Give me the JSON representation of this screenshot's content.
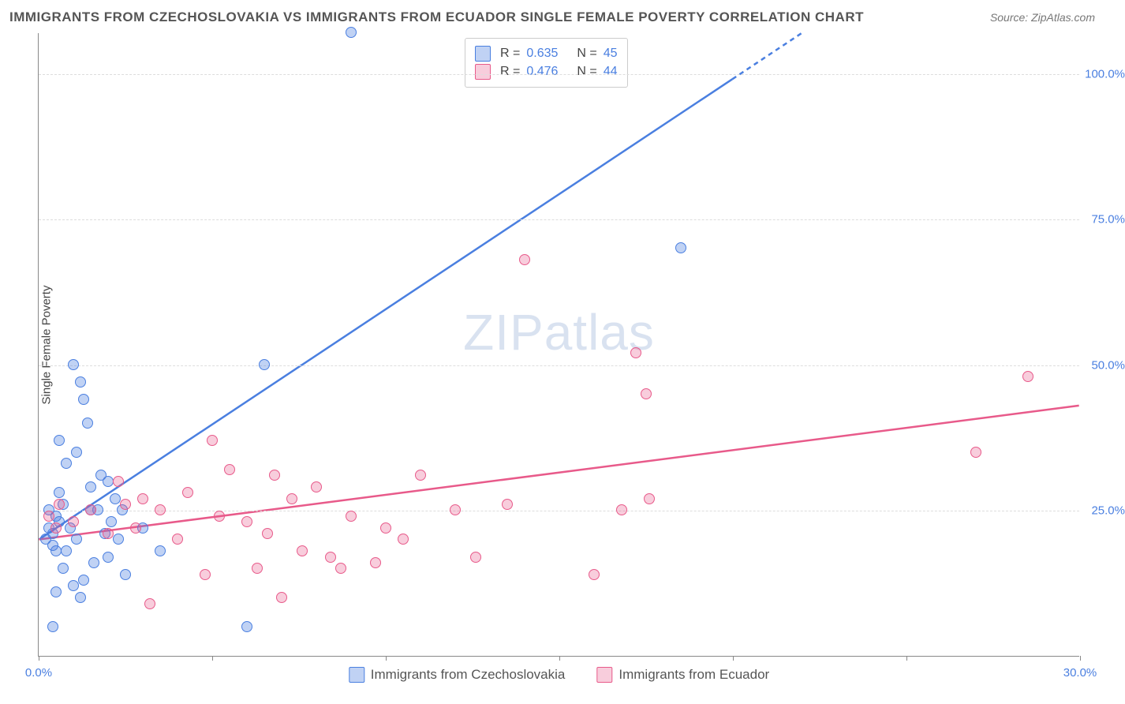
{
  "title": "IMMIGRANTS FROM CZECHOSLOVAKIA VS IMMIGRANTS FROM ECUADOR SINGLE FEMALE POVERTY CORRELATION CHART",
  "source": "Source: ZipAtlas.com",
  "ylabel": "Single Female Poverty",
  "watermark": "ZIPatlas",
  "chart": {
    "type": "scatter",
    "xlim": [
      0,
      30
    ],
    "ylim": [
      0,
      107
    ],
    "xticks": [
      0,
      5,
      10,
      15,
      20,
      25,
      30
    ],
    "xtick_labels": {
      "0": "0.0%",
      "30": "30.0%"
    },
    "yticks": [
      25,
      50,
      75,
      100
    ],
    "ytick_labels": {
      "25": "25.0%",
      "50": "50.0%",
      "75": "75.0%",
      "100": "100.0%"
    },
    "background_color": "#ffffff",
    "grid_color": "#dddddd",
    "axis_color": "#888888",
    "tick_label_color": "#4a7fe0",
    "marker_radius": 7,
    "marker_fill_opacity": 0.35,
    "series": [
      {
        "name": "Immigrants from Czechoslovakia",
        "key": "czech",
        "color": "#4a7fe0",
        "fill": "rgba(74,127,224,0.35)",
        "R": "0.635",
        "N": "45",
        "trend": {
          "x1": 0,
          "y1": 20,
          "x2": 22,
          "y2": 107,
          "dash_after_x": 20
        },
        "points": [
          [
            0.2,
            20
          ],
          [
            0.3,
            22
          ],
          [
            0.4,
            19
          ],
          [
            0.5,
            24
          ],
          [
            0.3,
            25
          ],
          [
            0.4,
            21
          ],
          [
            0.6,
            23
          ],
          [
            0.5,
            18
          ],
          [
            0.7,
            26
          ],
          [
            1.0,
            50
          ],
          [
            0.8,
            33
          ],
          [
            1.2,
            47
          ],
          [
            1.3,
            44
          ],
          [
            1.4,
            40
          ],
          [
            1.1,
            35
          ],
          [
            1.5,
            29
          ],
          [
            2.0,
            30
          ],
          [
            2.2,
            27
          ],
          [
            1.8,
            31
          ],
          [
            2.5,
            14
          ],
          [
            1.6,
            16
          ],
          [
            1.3,
            13
          ],
          [
            1.0,
            12
          ],
          [
            0.7,
            15
          ],
          [
            0.5,
            11
          ],
          [
            1.2,
            10
          ],
          [
            2.0,
            17
          ],
          [
            2.3,
            20
          ],
          [
            3.0,
            22
          ],
          [
            3.5,
            18
          ],
          [
            0.4,
            5
          ],
          [
            1.9,
            21
          ],
          [
            0.6,
            37
          ],
          [
            2.1,
            23
          ],
          [
            1.5,
            25
          ],
          [
            6.5,
            50
          ],
          [
            6.0,
            5
          ],
          [
            9.0,
            107
          ],
          [
            0.9,
            22
          ],
          [
            1.1,
            20
          ],
          [
            0.8,
            18
          ],
          [
            0.6,
            28
          ],
          [
            1.7,
            25
          ],
          [
            2.4,
            25
          ],
          [
            18.5,
            70
          ]
        ]
      },
      {
        "name": "Immigrants from Ecuador",
        "key": "ecuador",
        "color": "#e85a8a",
        "fill": "rgba(232,90,138,0.30)",
        "R": "0.476",
        "N": "44",
        "trend": {
          "x1": 0,
          "y1": 20,
          "x2": 30,
          "y2": 43
        },
        "points": [
          [
            0.3,
            24
          ],
          [
            0.5,
            22
          ],
          [
            0.6,
            26
          ],
          [
            1.0,
            23
          ],
          [
            1.5,
            25
          ],
          [
            2.0,
            21
          ],
          [
            2.3,
            30
          ],
          [
            2.5,
            26
          ],
          [
            2.8,
            22
          ],
          [
            3.0,
            27
          ],
          [
            3.2,
            9
          ],
          [
            3.5,
            25
          ],
          [
            4.0,
            20
          ],
          [
            4.3,
            28
          ],
          [
            5.0,
            37
          ],
          [
            5.2,
            24
          ],
          [
            5.5,
            32
          ],
          [
            6.0,
            23
          ],
          [
            6.3,
            15
          ],
          [
            6.6,
            21
          ],
          [
            7.0,
            10
          ],
          [
            7.3,
            27
          ],
          [
            7.6,
            18
          ],
          [
            8.0,
            29
          ],
          [
            8.4,
            17
          ],
          [
            9.0,
            24
          ],
          [
            9.7,
            16
          ],
          [
            10.0,
            22
          ],
          [
            10.5,
            20
          ],
          [
            11.0,
            31
          ],
          [
            12.0,
            25
          ],
          [
            12.6,
            17
          ],
          [
            13.5,
            26
          ],
          [
            14.0,
            68
          ],
          [
            16.0,
            14
          ],
          [
            16.8,
            25
          ],
          [
            17.2,
            52
          ],
          [
            17.5,
            45
          ],
          [
            17.6,
            27
          ],
          [
            27.0,
            35
          ],
          [
            28.5,
            48
          ],
          [
            4.8,
            14
          ],
          [
            6.8,
            31
          ],
          [
            8.7,
            15
          ]
        ]
      }
    ]
  },
  "legend_labels": {
    "R": "R =",
    "N": "N ="
  }
}
